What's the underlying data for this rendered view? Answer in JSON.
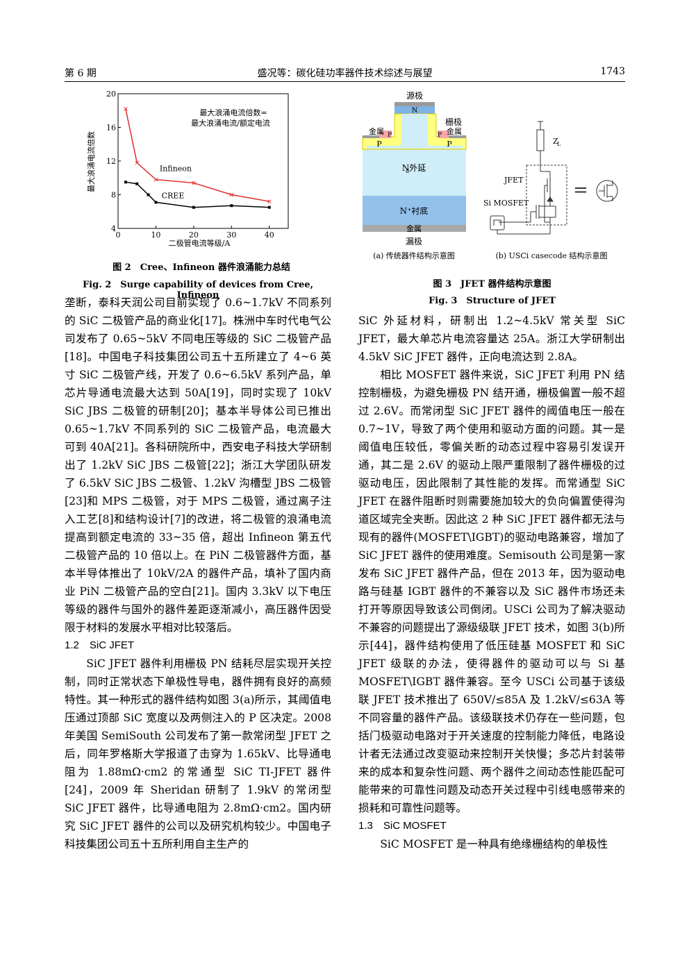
{
  "header": {
    "left": "第 6 期",
    "center": "盛况等：碳化硅功率器件技术综述与展望",
    "right": "1743"
  },
  "figure2": {
    "caption_cn": "图 2　Cree、Infineon 器件浪涌能力总结",
    "caption_en": "Fig. 2　Surge capability of devices from Cree, Infineon",
    "annotation_line1": "最大浪涌电流倍数=",
    "annotation_line2": "最大浪涌电流/额定电流",
    "chart_data": {
      "type": "line",
      "xlabel": "二极管电流等级/A",
      "ylabel": "最大浪涌电流倍数",
      "xlim": [
        0,
        45
      ],
      "ylim": [
        4,
        20
      ],
      "xticks": [
        0,
        10,
        20,
        30,
        40
      ],
      "yticks": [
        4,
        8,
        12,
        16,
        20
      ],
      "series": [
        {
          "name": "Infineon",
          "color": "#e03030",
          "marker": "x",
          "x": [
            2,
            5,
            10,
            20,
            30,
            40
          ],
          "values": [
            18.2,
            11.8,
            9.8,
            9.4,
            8.0,
            7.2
          ]
        },
        {
          "name": "CREE",
          "color": "#000000",
          "marker": "square",
          "x": [
            2,
            5,
            8,
            10,
            20,
            30,
            40
          ],
          "values": [
            9.5,
            9.3,
            8.0,
            7.1,
            6.5,
            6.7,
            6.5
          ]
        }
      ]
    }
  },
  "figure3": {
    "caption_cn": "图 3　JFET 器件结构示意图",
    "caption_en": "Fig. 3　Structure of JFET",
    "a": {
      "source": "源极",
      "n": "N",
      "gate": "栅极",
      "metal_left": "金属",
      "metal_right": "金属",
      "p_small_left": "P",
      "p_small_right": "P",
      "p_left": "P",
      "p_right": "P",
      "epi": "N外延",
      "epi_sub": "d",
      "substrate": "N⁺衬底",
      "metal_bottom": "金属",
      "drain": "漏极",
      "label": "(a)  传统器件结构示意图"
    },
    "b": {
      "zl": "Z",
      "zl_sub": "L",
      "jfet": "JFET",
      "mosfet": "Si MOSFET",
      "equals": "=",
      "label": "(b)  USCi casecode 结构示意图"
    }
  },
  "left_column": {
    "p1": "垄断，泰科天润公司目前实现了 0.6~1.7kV 不同系列的 SiC 二极管产品的商业化[17]。株洲中车时代电气公司发布了 0.65~5kV 不同电压等级的 SiC 二极管产品[18]。中国电子科技集团公司五十五所建立了 4~6 英寸 SiC 二极管产线，开发了 0.6~6.5kV 系列产品，单芯片导通电流最大达到 50A[19]，同时实现了 10kV SiC JBS 二极管的研制[20]；基本半导体公司已推出 0.65~1.7kV 不同系列的 SiC 二极管产品，电流最大可到 40A[21]。各科研院所中，西安电子科技大学研制出了 1.2kV SiC JBS 二极管[22]；浙江大学团队研发了 6.5kV SiC JBS 二极管、1.2kV 沟槽型 JBS 二极管[23]和 MPS 二极管，对于 MPS 二极管，通过离子注入工艺[8]和结构设计[7]的改进，将二极管的浪涌电流提高到额定电流的 33~35 倍，超出 Infineon 第五代二极管产品的 10 倍以上。在 PiN 二极管器件方面，基本半导体推出了 10kV/2A 的器件产品，填补了国内商业 PiN 二极管产品的空白[21]。国内 3.3kV 以下电压等级的器件与国外的器件差距逐渐减小，高压器件因受限于材料的发展水平相对比较落后。",
    "section": "1.2　SiC JFET",
    "p2": "SiC JFET 器件利用栅极 PN 结耗尽层实现开关控制，同时正常状态下单极性导电，器件拥有良好的高频特性。其一种形式的器件结构如图 3(a)所示，其阈值电压通过顶部 SiC 宽度以及两侧注入的 P 区决定。2008 年美国 SemiSouth 公司发布了第一款常闭型 JFET 之后，同年罗格斯大学报道了击穿为 1.65kV、比导通电阻为 1.88mΩ·cm2 的常通型 SiC TI-JFET 器件[24]，2009 年 Sheridan 研制了 1.9kV 的常闭型 SiC JFET 器件，比导通电阻为 2.8mΩ·cm2。国内研究 SiC JFET 器件的公司以及研究机构较少。中国电子科技集团公司五十五所利用自主生产的"
  },
  "right_column": {
    "p1": "SiC 外延材料，研制出 1.2~4.5kV 常关型 SiC JFET，最大单芯片电流容量达 25A。浙江大学研制出 4.5kV SiC JFET 器件，正向电流达到 2.8A。",
    "p2": "相比 MOSFET 器件来说，SiC JFET 利用 PN 结控制栅极，为避免栅极 PN 结开通，栅极偏置一般不超过 2.6V。而常闭型 SiC JFET 器件的阈值电压一般在 0.7~1V，导致了两个使用和驱动方面的问题。其一是阈值电压较低，零偏关断的动态过程中容易引发误开通，其二是 2.6V 的驱动上限严重限制了器件栅极的过驱动电压，因此限制了其性能的发挥。而常通型 SiC JFET 在器件阻断时则需要施加较大的负向偏置使得沟道区域完全夹断。因此这 2 种 SiC JFET 器件都无法与现有的器件(MOSFET\\IGBT)的驱动电路兼容，增加了 SiC JFET 器件的使用难度。Semisouth 公司是第一家发布 SiC JFET 器件产品，但在 2013 年，因为驱动电路与硅基 IGBT 器件的不兼容以及 SiC 器件市场还未打开等原因导致该公司倒闭。USCi 公司为了解决驱动不兼容的问题提出了源级级联 JFET 技术，如图 3(b)所示[44]，器件结构使用了低压硅基 MOSFET 和 SiC JFET 级联的办法，使得器件的驱动可以与 Si 基 MOSFET\\IGBT 器件兼容。至今 USCi 公司基于该级联 JFET 技术推出了 650V/≤85A 及 1.2kV/≤63A 等不同容量的器件产品。该级联技术仍存在一些问题，包括门极驱动电路对于开关速度的控制能力降低，电路设计者无法通过改变驱动来控制开关快慢；多芯片封装带来的成本和复杂性问题、两个器件之间动态性能匹配可能带来的可靠性问题及动态开关过程中引线电感带来的损耗和可靠性问题等。",
    "section": "1.3　SiC MOSFET",
    "p3": "SiC MOSFET 是一种具有绝缘栅结构的单极性"
  }
}
